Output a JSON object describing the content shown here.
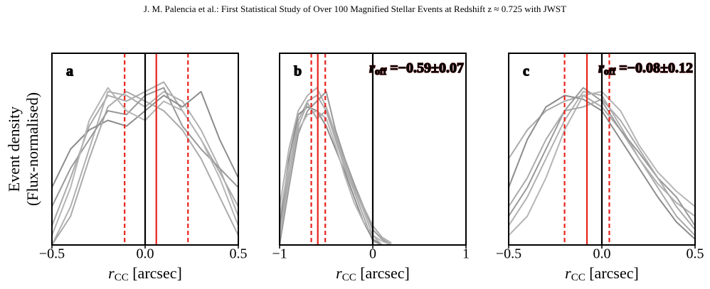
{
  "page_header": "J. M. Palencia   et al.: First Statistical Study of Over 100 Magnified Stellar Events at Redshift z ≈ 0.725 with JWST",
  "chart_data": [
    {
      "type": "line",
      "panel_label": "a",
      "ylabel": [
        "Event density",
        "(Flux-normalised)"
      ],
      "xlabel": {
        "symbol": "r",
        "subscript": "CC",
        "text": " [arcsec]"
      },
      "xlim": [
        -0.5,
        0.5
      ],
      "ylim": [
        0,
        1
      ],
      "xticks": [
        {
          "value": -0.5,
          "label": "−0.5"
        },
        {
          "value": 0,
          "label": "0.0"
        },
        0.5
      ],
      "x": [
        -0.5,
        -0.4,
        -0.3,
        -0.2,
        -0.1,
        0,
        0.1,
        0.2,
        0.3,
        0.4,
        0.5
      ],
      "series": [
        {
          "color": "#aaaaaa",
          "values": [
            0.1,
            0.35,
            0.62,
            0.78,
            0.75,
            0.8,
            0.85,
            0.7,
            0.55,
            0.38,
            0.2
          ]
        },
        {
          "color": "#b0b0b0",
          "values": [
            0.0,
            0.2,
            0.5,
            0.8,
            0.78,
            0.72,
            0.8,
            0.75,
            0.6,
            0.4,
            0.15
          ]
        },
        {
          "color": "#8c8c8c",
          "values": [
            0.3,
            0.5,
            0.6,
            0.65,
            0.62,
            0.7,
            0.78,
            0.72,
            0.8,
            0.55,
            0.35
          ]
        },
        {
          "color": "#aaaaaa",
          "values": [
            0.0,
            0.15,
            0.45,
            0.72,
            0.8,
            0.75,
            0.7,
            0.6,
            0.45,
            0.25,
            0.05
          ]
        },
        {
          "color": "#999999",
          "values": [
            0.2,
            0.4,
            0.55,
            0.7,
            0.68,
            0.78,
            0.82,
            0.62,
            0.5,
            0.4,
            0.3
          ]
        },
        {
          "color": "#b5b5b5",
          "values": [
            0.05,
            0.3,
            0.65,
            0.82,
            0.7,
            0.65,
            0.75,
            0.7,
            0.55,
            0.35,
            0.1
          ]
        }
      ],
      "vlines": [
        {
          "value": 0,
          "color": "#000000",
          "style": "solid"
        },
        {
          "value": 0.06,
          "color": "#e8231c",
          "style": "solid"
        },
        {
          "value": -0.11,
          "color": "#e8231c",
          "style": "dashed"
        },
        {
          "value": 0.23,
          "color": "#e8231c",
          "style": "dashed"
        }
      ]
    },
    {
      "type": "line",
      "panel_label": "b",
      "annotation": {
        "symbol": "r",
        "subscript": "off",
        "text": " =−0.59±0.07"
      },
      "xlabel": {
        "symbol": "r",
        "subscript": "CC",
        "text": " [arcsec]"
      },
      "xlim": [
        -1,
        1
      ],
      "ylim": [
        0,
        1
      ],
      "xticks": [
        {
          "value": -1,
          "label": "−1"
        },
        0,
        1
      ],
      "x": [
        -1,
        -0.9,
        -0.8,
        -0.7,
        -0.6,
        -0.5,
        -0.4,
        -0.3,
        -0.2,
        -0.1,
        0,
        0.1,
        0.2
      ],
      "series": [
        {
          "color": "#aaaaaa",
          "values": [
            0.05,
            0.4,
            0.65,
            0.75,
            0.78,
            0.7,
            0.55,
            0.4,
            0.28,
            0.15,
            0.02,
            0,
            0
          ]
        },
        {
          "color": "#8c8c8c",
          "values": [
            0.1,
            0.45,
            0.68,
            0.72,
            0.7,
            0.62,
            0.5,
            0.38,
            0.25,
            0.12,
            0.03,
            0,
            0
          ]
        },
        {
          "color": "#b0b0b0",
          "values": [
            0.2,
            0.5,
            0.7,
            0.78,
            0.82,
            0.72,
            0.58,
            0.42,
            0.3,
            0.18,
            0.05,
            0,
            0
          ]
        },
        {
          "color": "#999999",
          "values": [
            0.0,
            0.3,
            0.58,
            0.7,
            0.75,
            0.8,
            0.6,
            0.45,
            0.32,
            0.2,
            0.08,
            0.03,
            0
          ]
        },
        {
          "color": "#b5b5b5",
          "values": [
            0.15,
            0.42,
            0.6,
            0.68,
            0.7,
            0.66,
            0.52,
            0.36,
            0.22,
            0.12,
            0.05,
            0.02,
            0
          ]
        },
        {
          "color": "#aaaaaa",
          "values": [
            0.05,
            0.35,
            0.62,
            0.74,
            0.66,
            0.7,
            0.56,
            0.44,
            0.3,
            0.2,
            0.1,
            0.04,
            0.01
          ]
        }
      ],
      "vlines": [
        {
          "value": 0,
          "color": "#000000",
          "style": "solid"
        },
        {
          "value": -0.59,
          "color": "#e8231c",
          "style": "solid"
        },
        {
          "value": -0.66,
          "color": "#e8231c",
          "style": "dashed"
        },
        {
          "value": -0.51,
          "color": "#e8231c",
          "style": "dashed"
        }
      ]
    },
    {
      "type": "line",
      "panel_label": "c",
      "annotation": {
        "symbol": "r",
        "subscript": "off",
        "text": " =−0.08±0.12"
      },
      "xlabel": {
        "symbol": "r",
        "subscript": "CC",
        "text": " [arcsec]"
      },
      "xlim": [
        -0.5,
        0.5
      ],
      "ylim": [
        0,
        1
      ],
      "xticks": [
        {
          "value": -0.5,
          "label": "−0.5"
        },
        {
          "value": 0,
          "label": "0.0"
        },
        0.5
      ],
      "x": [
        -0.5,
        -0.4,
        -0.3,
        -0.2,
        -0.1,
        0,
        0.1,
        0.2,
        0.3,
        0.4,
        0.5
      ],
      "series": [
        {
          "color": "#aaaaaa",
          "values": [
            0.45,
            0.6,
            0.7,
            0.75,
            0.78,
            0.72,
            0.6,
            0.45,
            0.3,
            0.15,
            0.05
          ]
        },
        {
          "color": "#8c8c8c",
          "values": [
            0.3,
            0.55,
            0.72,
            0.78,
            0.76,
            0.7,
            0.55,
            0.4,
            0.25,
            0.12,
            0.03
          ]
        },
        {
          "color": "#b0b0b0",
          "values": [
            0.1,
            0.25,
            0.45,
            0.65,
            0.8,
            0.78,
            0.62,
            0.45,
            0.32,
            0.22,
            0.15
          ]
        },
        {
          "color": "#999999",
          "values": [
            0.15,
            0.3,
            0.5,
            0.7,
            0.82,
            0.75,
            0.6,
            0.48,
            0.35,
            0.25,
            0.1
          ]
        },
        {
          "color": "#b5b5b5",
          "values": [
            0.05,
            0.15,
            0.35,
            0.6,
            0.78,
            0.8,
            0.7,
            0.52,
            0.38,
            0.28,
            0.2
          ]
        },
        {
          "color": "#aaaaaa",
          "values": [
            0.2,
            0.35,
            0.55,
            0.7,
            0.72,
            0.76,
            0.65,
            0.5,
            0.35,
            0.2,
            0.08
          ]
        }
      ],
      "vlines": [
        {
          "value": 0,
          "color": "#000000",
          "style": "solid"
        },
        {
          "value": -0.08,
          "color": "#e8231c",
          "style": "solid"
        },
        {
          "value": -0.2,
          "color": "#e8231c",
          "style": "dashed"
        },
        {
          "value": 0.04,
          "color": "#e8231c",
          "style": "dashed"
        }
      ]
    }
  ]
}
